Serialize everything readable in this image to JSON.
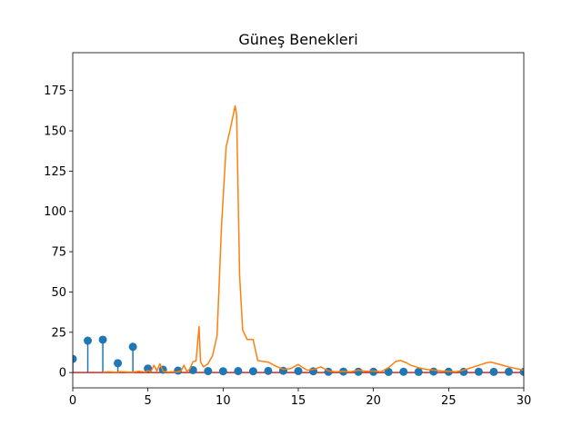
{
  "chart_data": {
    "type": "line",
    "title": "Güneş Benekleri",
    "xlabel": "",
    "ylabel": "",
    "xlim": [
      0,
      30
    ],
    "ylim": [
      -9.5,
      198.5
    ],
    "xticks": [
      0,
      5,
      10,
      15,
      20,
      25,
      30
    ],
    "yticks": [
      0,
      25,
      50,
      75,
      100,
      125,
      150,
      175
    ],
    "grid": false,
    "legend": "none",
    "series": [
      {
        "kind": "stem",
        "color": "#1f77b4",
        "baseline_color": "#d62728",
        "x": [
          0,
          1,
          2,
          3,
          4,
          5,
          6,
          7,
          8,
          9,
          10,
          11,
          12,
          13,
          14,
          15,
          16,
          17,
          18,
          19,
          20,
          21,
          22,
          23,
          24,
          25,
          26,
          27,
          28,
          29,
          30
        ],
        "y": [
          8.5,
          19.8,
          20.4,
          5.8,
          16.0,
          2.5,
          1.8,
          1.2,
          1.5,
          0.9,
          0.8,
          0.9,
          0.8,
          1.0,
          1.1,
          0.9,
          0.8,
          0.5,
          0.6,
          0.5,
          0.5,
          0.4,
          0.5,
          0.4,
          0.6,
          0.5,
          0.4,
          0.5,
          0.4,
          0.5,
          0.4
        ]
      },
      {
        "kind": "line",
        "color": "#ff7f0e",
        "x": [
          2,
          2.4,
          2.8,
          3.2,
          3.6,
          4.0,
          4.4,
          4.8,
          5.0,
          5.2,
          5.4,
          5.6,
          5.8,
          6.0,
          6.3,
          6.6,
          6.9,
          7.2,
          7.4,
          7.6,
          7.8,
          8.0,
          8.2,
          8.4,
          8.5,
          8.7,
          9.0,
          9.3,
          9.6,
          9.9,
          10.2,
          10.5,
          10.8,
          10.9,
          11.1,
          11.3,
          11.6,
          12.0,
          12.3,
          12.6,
          13.0,
          13.5,
          14.0,
          14.5,
          15.0,
          15.3,
          15.6,
          16.0,
          16.5,
          17.0,
          17.5,
          18.0,
          18.5,
          19.0,
          19.5,
          20.0,
          20.5,
          21.0,
          21.5,
          21.8,
          22.2,
          22.5,
          23.0,
          23.5,
          24.0,
          24.5,
          25.0,
          25.5,
          26.0,
          26.5,
          27.0,
          27.5,
          27.8,
          28.2,
          28.6,
          29.0,
          29.5,
          30.0
        ],
        "y": [
          0.3,
          0.5,
          0.2,
          0.6,
          0.4,
          0.3,
          0.8,
          0.4,
          1.2,
          0.6,
          4.5,
          1.0,
          5.5,
          0.8,
          0.4,
          0.5,
          0.3,
          1.0,
          4.5,
          0.5,
          2.5,
          6.8,
          7.2,
          28.5,
          6.5,
          3.5,
          5.5,
          10.5,
          23.0,
          92.0,
          140.0,
          152.0,
          165.5,
          160.0,
          60.0,
          26.5,
          20.5,
          20.5,
          7.5,
          7.0,
          6.5,
          4.0,
          2.0,
          2.5,
          5.0,
          3.0,
          1.5,
          2.0,
          3.5,
          1.0,
          0.5,
          0.8,
          0.5,
          1.5,
          0.8,
          1.0,
          0.5,
          3.0,
          7.0,
          7.5,
          6.0,
          4.5,
          3.0,
          2.0,
          1.5,
          1.0,
          0.8,
          0.5,
          1.5,
          3.0,
          4.5,
          6.0,
          6.5,
          5.5,
          4.5,
          3.5,
          2.5,
          1.5
        ]
      }
    ]
  }
}
